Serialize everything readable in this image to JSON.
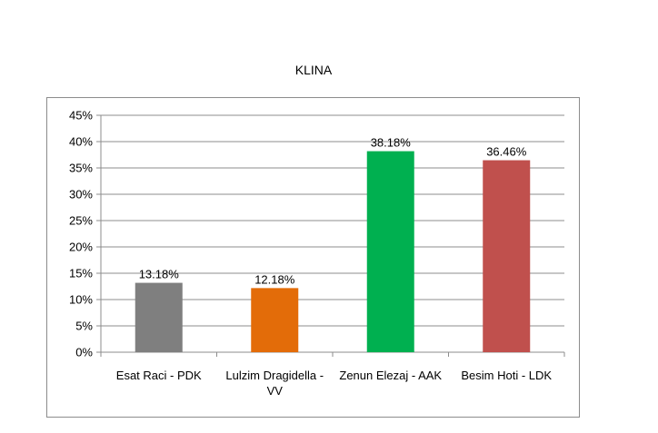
{
  "chart_data": {
    "type": "bar",
    "title": "KLINA",
    "categories": [
      [
        "Esat Raci - PDK"
      ],
      [
        "Lulzim Dragidella -",
        "VV"
      ],
      [
        "Zenun Elezaj - AAK"
      ],
      [
        "Besim Hoti - LDK"
      ]
    ],
    "values": [
      13.18,
      12.18,
      38.18,
      36.46
    ],
    "data_labels": [
      "13.18%",
      "12.18%",
      "38.18%",
      "36.46%"
    ],
    "colors": [
      "#7f7f7f",
      "#e36c09",
      "#00b050",
      "#c0504d"
    ],
    "ylim": [
      0,
      45
    ],
    "yticks": [
      0,
      5,
      10,
      15,
      20,
      25,
      30,
      35,
      40,
      45
    ],
    "ytick_labels": [
      "0%",
      "5%",
      "10%",
      "15%",
      "20%",
      "25%",
      "30%",
      "35%",
      "40%",
      "45%"
    ],
    "grid": true,
    "legend": "none",
    "xlabel": "",
    "ylabel": ""
  }
}
